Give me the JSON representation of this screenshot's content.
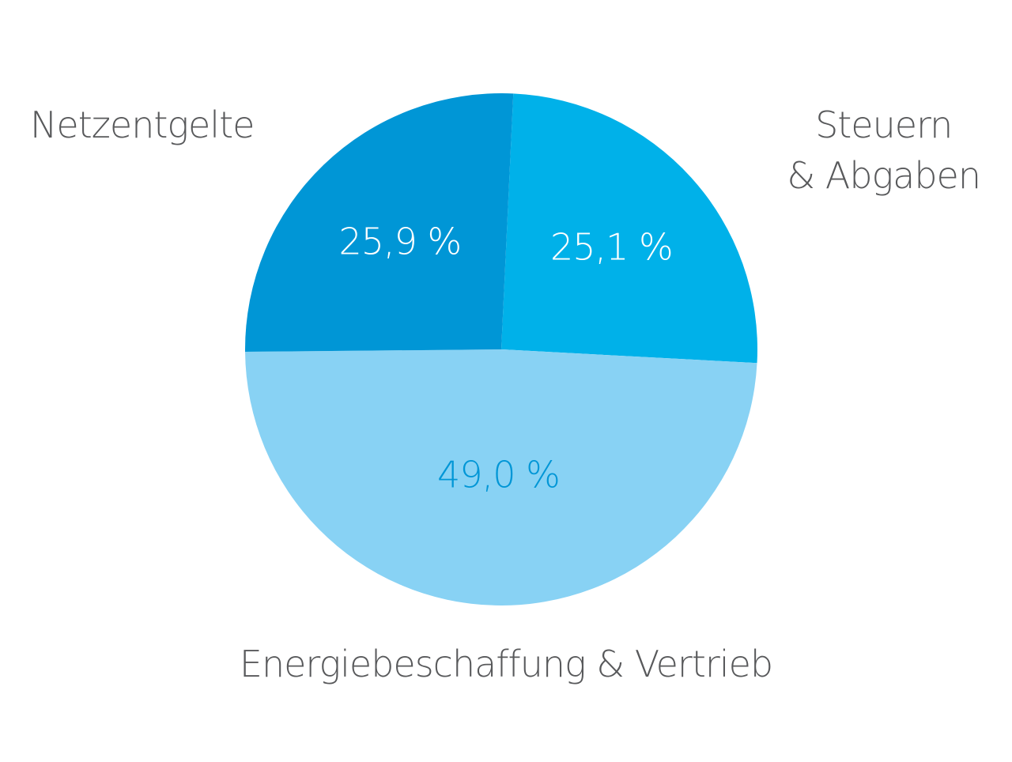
{
  "chart_data": {
    "type": "pie",
    "title": "",
    "slices": [
      {
        "label": "Netzentgelte",
        "value": 25.9,
        "value_label": "25,9 %",
        "color": "#0096d6",
        "text_color": "#ffffff"
      },
      {
        "label": "Steuern & Abgaben",
        "label_lines": [
          "Steuern",
          "& Abgaben"
        ],
        "value": 25.1,
        "value_label": "25,1 %",
        "color": "#00b1e9",
        "text_color": "#ffffff"
      },
      {
        "label": "Energiebeschaffung & Vertrieb",
        "value": 49.0,
        "value_label": "49,0 %",
        "color": "#88d2f4",
        "text_color": "#0096d6"
      }
    ],
    "legend": "none",
    "label_color": "#58595b"
  }
}
